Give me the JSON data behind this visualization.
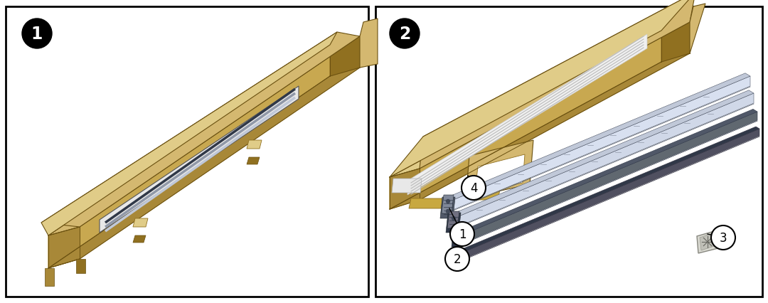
{
  "background_color": "#ffffff",
  "border_color": "#000000",
  "badge_fill": "#000000",
  "badge_text": "#ffffff",
  "callout_fill": "#ffffff",
  "callout_border": "#000000",
  "bc_top": "#d4b870",
  "bc_front": "#c8a850",
  "bc_side": "#a88838",
  "bc_inner": "#e0cc88",
  "bc_dark": "#907020",
  "bc_shadow": "#6a5010",
  "rl_silver": "#c0c8d8",
  "rl_mid": "#9098a8",
  "rl_dark": "#505868",
  "rl_vdark": "#303848",
  "fig_width": 10.8,
  "fig_height": 4.27,
  "dpi": 100
}
